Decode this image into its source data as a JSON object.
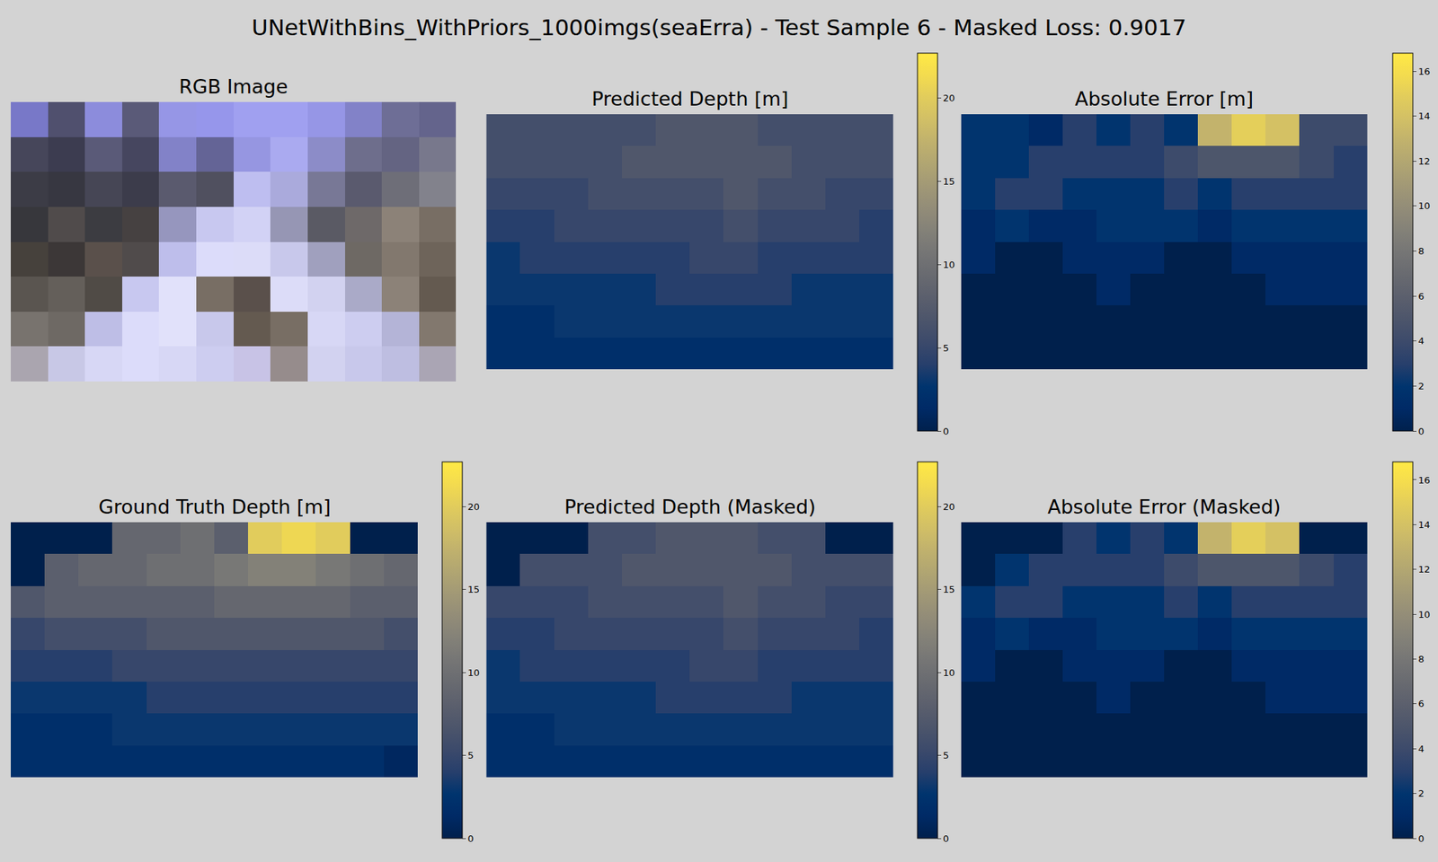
{
  "title": "UNetWithBins_WithPriors_1000imgs(seaErra) - Test Sample 6 - Masked Loss: 0.9017",
  "chart_data": [
    {
      "type": "image",
      "title": "RGB Image",
      "tick_labels": false,
      "z": [
        [
          [
            120,
            120,
            200
          ],
          [
            80,
            80,
            110
          ],
          [
            140,
            140,
            220
          ],
          [
            90,
            90,
            120
          ],
          [
            150,
            150,
            230
          ],
          [
            150,
            150,
            235
          ],
          [
            160,
            160,
            240
          ],
          [
            160,
            160,
            240
          ],
          [
            150,
            150,
            230
          ],
          [
            130,
            130,
            200
          ],
          [
            110,
            110,
            150
          ],
          [
            100,
            100,
            140
          ]
        ],
        [
          [
            70,
            70,
            90
          ],
          [
            60,
            60,
            80
          ],
          [
            90,
            90,
            120
          ],
          [
            70,
            70,
            95
          ],
          [
            130,
            130,
            200
          ],
          [
            100,
            100,
            150
          ],
          [
            150,
            150,
            225
          ],
          [
            170,
            170,
            240
          ],
          [
            140,
            140,
            200
          ],
          [
            110,
            110,
            140
          ],
          [
            100,
            100,
            130
          ],
          [
            120,
            120,
            140
          ]
        ],
        [
          [
            60,
            60,
            70
          ],
          [
            55,
            55,
            65
          ],
          [
            70,
            70,
            85
          ],
          [
            60,
            60,
            75
          ],
          [
            90,
            90,
            110
          ],
          [
            80,
            80,
            95
          ],
          [
            190,
            190,
            240
          ],
          [
            170,
            170,
            220
          ],
          [
            120,
            120,
            150
          ],
          [
            90,
            90,
            110
          ],
          [
            110,
            110,
            120
          ],
          [
            130,
            130,
            140
          ]
        ],
        [
          [
            55,
            55,
            60
          ],
          [
            80,
            75,
            75
          ],
          [
            60,
            60,
            65
          ],
          [
            70,
            65,
            65
          ],
          [
            150,
            150,
            190
          ],
          [
            200,
            200,
            240
          ],
          [
            210,
            210,
            245
          ],
          [
            150,
            150,
            180
          ],
          [
            90,
            90,
            100
          ],
          [
            110,
            105,
            105
          ],
          [
            140,
            130,
            120
          ],
          [
            120,
            110,
            100
          ]
        ],
        [
          [
            70,
            65,
            60
          ],
          [
            60,
            55,
            55
          ],
          [
            90,
            80,
            75
          ],
          [
            80,
            75,
            75
          ],
          [
            190,
            190,
            235
          ],
          [
            220,
            220,
            250
          ],
          [
            220,
            220,
            248
          ],
          [
            200,
            200,
            235
          ],
          [
            160,
            160,
            190
          ],
          [
            110,
            105,
            100
          ],
          [
            130,
            120,
            110
          ],
          [
            110,
            100,
            90
          ]
        ],
        [
          [
            90,
            85,
            80
          ],
          [
            100,
            95,
            90
          ],
          [
            80,
            75,
            70
          ],
          [
            200,
            200,
            240
          ],
          [
            225,
            225,
            250
          ],
          [
            120,
            110,
            100
          ],
          [
            90,
            80,
            75
          ],
          [
            220,
            220,
            248
          ],
          [
            210,
            210,
            240
          ],
          [
            170,
            170,
            200
          ],
          [
            140,
            130,
            120
          ],
          [
            100,
            90,
            80
          ]
        ],
        [
          [
            120,
            115,
            110
          ],
          [
            110,
            105,
            100
          ],
          [
            190,
            190,
            230
          ],
          [
            220,
            220,
            250
          ],
          [
            225,
            225,
            250
          ],
          [
            200,
            200,
            235
          ],
          [
            100,
            90,
            80
          ],
          [
            120,
            110,
            100
          ],
          [
            215,
            215,
            245
          ],
          [
            205,
            205,
            240
          ],
          [
            180,
            180,
            215
          ],
          [
            130,
            120,
            110
          ]
        ],
        [
          [
            170,
            165,
            175
          ],
          [
            200,
            200,
            230
          ],
          [
            215,
            215,
            245
          ],
          [
            220,
            220,
            250
          ],
          [
            215,
            215,
            245
          ],
          [
            205,
            205,
            240
          ],
          [
            200,
            195,
            230
          ],
          [
            150,
            140,
            140
          ],
          [
            210,
            210,
            240
          ],
          [
            200,
            200,
            235
          ],
          [
            190,
            190,
            225
          ],
          [
            170,
            165,
            180
          ]
        ]
      ]
    },
    {
      "type": "heatmap",
      "title": "Predicted Depth [m]",
      "tick_labels": false,
      "color": "Cividis",
      "colorbar": {
        "range": [
          0,
          22.7
        ],
        "ticks": [
          0,
          5,
          10,
          15,
          20
        ]
      },
      "z": [
        [
          6,
          6,
          6,
          6,
          6,
          7,
          7,
          7,
          6,
          6,
          6,
          6
        ],
        [
          6,
          6,
          6,
          6,
          7,
          7,
          7,
          7,
          7,
          6,
          6,
          6
        ],
        [
          5,
          5,
          5,
          6,
          6,
          6,
          6,
          7,
          6,
          6,
          5,
          5
        ],
        [
          4,
          4,
          5,
          5,
          5,
          5,
          5,
          6,
          5,
          5,
          5,
          4
        ],
        [
          3,
          4,
          4,
          4,
          4,
          4,
          5,
          5,
          4,
          4,
          4,
          4
        ],
        [
          3,
          3,
          3,
          3,
          3,
          4,
          4,
          4,
          4,
          3,
          3,
          3
        ],
        [
          2,
          2,
          3,
          3,
          3,
          3,
          3,
          3,
          3,
          3,
          3,
          3
        ],
        [
          2,
          2,
          2,
          2,
          2,
          2,
          2,
          2,
          2,
          2,
          2,
          2
        ]
      ]
    },
    {
      "type": "heatmap",
      "title": "Absolute Error [m]",
      "tick_labels": false,
      "color": "Cividis",
      "colorbar": {
        "range": [
          0,
          16.8
        ],
        "ticks": [
          0,
          2,
          4,
          6,
          8,
          10,
          12,
          14,
          16
        ]
      },
      "z": [
        [
          2,
          2,
          1,
          3,
          2,
          3,
          2,
          13,
          15,
          14,
          4,
          4
        ],
        [
          2,
          2,
          3,
          3,
          3,
          3,
          4,
          5,
          5,
          5,
          4,
          3
        ],
        [
          2,
          3,
          3,
          2,
          2,
          2,
          3,
          2,
          3,
          3,
          3,
          3
        ],
        [
          1,
          2,
          1,
          1,
          2,
          2,
          2,
          1,
          2,
          2,
          2,
          2
        ],
        [
          1,
          0,
          0,
          1,
          1,
          1,
          0,
          0,
          1,
          1,
          1,
          1
        ],
        [
          0,
          0,
          0,
          0,
          1,
          0,
          0,
          0,
          0,
          1,
          1,
          1
        ],
        [
          0,
          0,
          0,
          0,
          0,
          0,
          0,
          0,
          0,
          0,
          0,
          0
        ],
        [
          0,
          0,
          0,
          0,
          0,
          0,
          0,
          0,
          0,
          0,
          0,
          0
        ]
      ]
    },
    {
      "type": "heatmap",
      "title": "Ground Truth Depth [m]",
      "tick_labels": false,
      "color": "Cividis",
      "colorbar": {
        "range": [
          0,
          22.7
        ],
        "ticks": [
          0,
          5,
          10,
          15,
          20
        ]
      },
      "z": [
        [
          0,
          0,
          0,
          9,
          9,
          10,
          8,
          20,
          21,
          20,
          0,
          0
        ],
        [
          0,
          8,
          9,
          9,
          10,
          10,
          11,
          12,
          12,
          11,
          10,
          9
        ],
        [
          7,
          8,
          8,
          8,
          8,
          8,
          9,
          9,
          9,
          9,
          8,
          8
        ],
        [
          5,
          6,
          6,
          6,
          7,
          7,
          7,
          7,
          7,
          7,
          7,
          6
        ],
        [
          4,
          4,
          4,
          5,
          5,
          5,
          5,
          5,
          5,
          5,
          5,
          5
        ],
        [
          3,
          3,
          3,
          3,
          4,
          4,
          4,
          4,
          4,
          4,
          4,
          4
        ],
        [
          2,
          2,
          2,
          3,
          3,
          3,
          3,
          3,
          3,
          3,
          3,
          3
        ],
        [
          2,
          2,
          2,
          2,
          2,
          2,
          2,
          2,
          2,
          2,
          2,
          1
        ]
      ]
    },
    {
      "type": "heatmap",
      "title": "Predicted Depth (Masked)",
      "tick_labels": false,
      "color": "Cividis",
      "colorbar": {
        "range": [
          0,
          22.7
        ],
        "ticks": [
          0,
          5,
          10,
          15,
          20
        ]
      },
      "z": [
        [
          0,
          0,
          0,
          6,
          6,
          7,
          7,
          7,
          6,
          6,
          0,
          0
        ],
        [
          0,
          6,
          6,
          6,
          7,
          7,
          7,
          7,
          7,
          6,
          6,
          6
        ],
        [
          5,
          5,
          5,
          6,
          6,
          6,
          6,
          7,
          6,
          6,
          5,
          5
        ],
        [
          4,
          4,
          5,
          5,
          5,
          5,
          5,
          6,
          5,
          5,
          5,
          4
        ],
        [
          3,
          4,
          4,
          4,
          4,
          4,
          5,
          5,
          4,
          4,
          4,
          4
        ],
        [
          3,
          3,
          3,
          3,
          3,
          4,
          4,
          4,
          4,
          3,
          3,
          3
        ],
        [
          2,
          2,
          3,
          3,
          3,
          3,
          3,
          3,
          3,
          3,
          3,
          3
        ],
        [
          2,
          2,
          2,
          2,
          2,
          2,
          2,
          2,
          2,
          2,
          2,
          2
        ]
      ]
    },
    {
      "type": "heatmap",
      "title": "Absolute Error (Masked)",
      "tick_labels": false,
      "color": "Cividis",
      "colorbar": {
        "range": [
          0,
          16.8
        ],
        "ticks": [
          0,
          2,
          4,
          6,
          8,
          10,
          12,
          14,
          16
        ]
      },
      "z": [
        [
          0,
          0,
          0,
          3,
          2,
          3,
          2,
          13,
          15,
          14,
          0,
          0
        ],
        [
          0,
          2,
          3,
          3,
          3,
          3,
          4,
          5,
          5,
          5,
          4,
          3
        ],
        [
          2,
          3,
          3,
          2,
          2,
          2,
          3,
          2,
          3,
          3,
          3,
          3
        ],
        [
          1,
          2,
          1,
          1,
          2,
          2,
          2,
          1,
          2,
          2,
          2,
          2
        ],
        [
          1,
          0,
          0,
          1,
          1,
          1,
          0,
          0,
          1,
          1,
          1,
          1
        ],
        [
          0,
          0,
          0,
          0,
          1,
          0,
          0,
          0,
          0,
          1,
          1,
          1
        ],
        [
          0,
          0,
          0,
          0,
          0,
          0,
          0,
          0,
          0,
          0,
          0,
          0
        ],
        [
          0,
          0,
          0,
          0,
          0,
          0,
          0,
          0,
          0,
          0,
          0,
          0
        ]
      ]
    }
  ]
}
